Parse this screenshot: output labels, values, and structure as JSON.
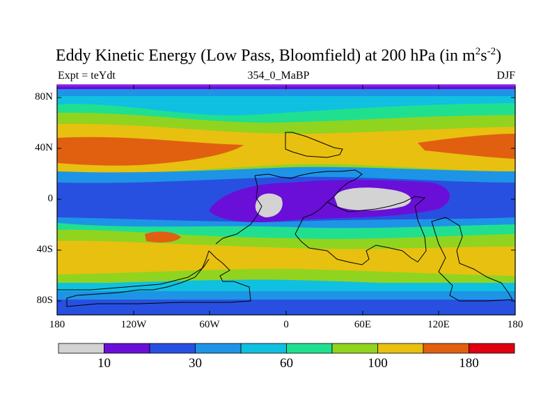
{
  "title": {
    "prefix": "Eddy Kinetic Energy (Low Pass, Bloomfield) at 200 hPa (in m",
    "sup1": "2",
    "mid": "s",
    "sup2": "-2",
    "suffix": ")"
  },
  "subtitles": {
    "left": "Expt = teYdt",
    "center": "354_0_MaBP",
    "right": "DJF"
  },
  "axes": {
    "y_ticks": [
      "80N",
      "40N",
      "0",
      "40S",
      "80S"
    ],
    "x_ticks": [
      "180",
      "120W",
      "60W",
      "0",
      "60E",
      "120E",
      "180"
    ]
  },
  "colorbar": {
    "colors": [
      "#d3d3d3",
      "#6a0fd8",
      "#2850e0",
      "#1e94e6",
      "#10c0e0",
      "#20e090",
      "#90d420",
      "#e8c010",
      "#e06010",
      "#e00010"
    ],
    "labels": [
      {
        "text": "10",
        "boundary": 1
      },
      {
        "text": "30",
        "boundary": 3
      },
      {
        "text": "60",
        "boundary": 5
      },
      {
        "text": "100",
        "boundary": 7
      },
      {
        "text": "180",
        "boundary": 9
      }
    ]
  },
  "legend_colors": {
    "light_gray": "#d3d3d3",
    "purple": "#6a0fd8",
    "blue": "#2850e0",
    "mid_blue": "#1e94e6",
    "cyan": "#10c0e0",
    "green": "#20e090",
    "yellow_green": "#90d420",
    "yellow": "#e8c010",
    "orange": "#e06010",
    "red": "#e00010"
  }
}
